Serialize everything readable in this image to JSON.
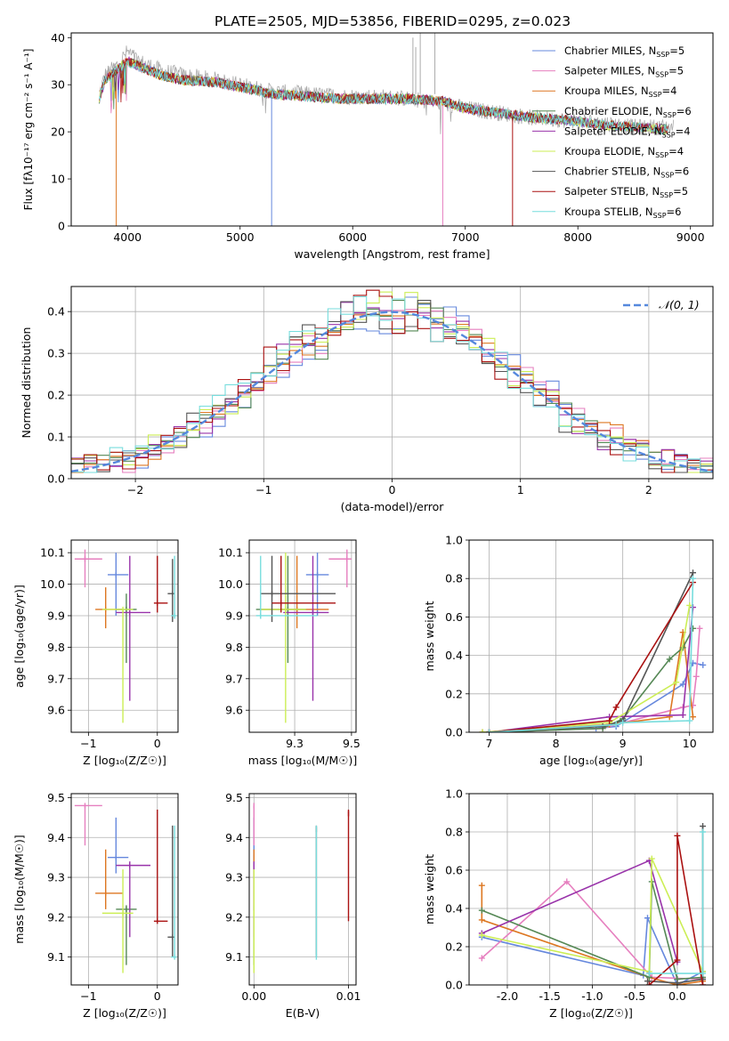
{
  "title": "PLATE=2505, MJD=53856, FIBERID=0295, z=0.023",
  "colors": [
    "#6688dd",
    "#e67fbf",
    "#dd7722",
    "#558855",
    "#9933aa",
    "#ccee55",
    "#555555",
    "#aa1111",
    "#77dddd"
  ],
  "chart_data": [
    {
      "id": "spectrum",
      "type": "line",
      "xlabel": "wavelength [Angstrom, rest frame]",
      "ylabel": "Flux [fλ10⁻¹⁷ erg cm⁻² s⁻¹ A⁻¹]",
      "xlim": [
        3500,
        9200
      ],
      "ylim": [
        0,
        41
      ],
      "xticks": [
        4000,
        5000,
        6000,
        7000,
        8000,
        9000
      ],
      "yticks": [
        0,
        10,
        20,
        30,
        40
      ],
      "legend_position": "top-right",
      "legend": [
        {
          "label": "Chabrier MILES, N",
          "sub": "SSP",
          "suffix": "=5"
        },
        {
          "label": "Salpeter MILES, N",
          "sub": "SSP",
          "suffix": "=5"
        },
        {
          "label": "Kroupa MILES, N",
          "sub": "SSP",
          "suffix": "=4"
        },
        {
          "label": "Chabrier ELODIE, N",
          "sub": "SSP",
          "suffix": "=6"
        },
        {
          "label": "Salpeter ELODIE, N",
          "sub": "SSP",
          "suffix": "=4"
        },
        {
          "label": "Kroupa ELODIE, N",
          "sub": "SSP",
          "suffix": "=4"
        },
        {
          "label": "Chabrier STELIB, N",
          "sub": "SSP",
          "suffix": "=6"
        },
        {
          "label": "Salpeter STELIB, N",
          "sub": "SSP",
          "suffix": "=5"
        },
        {
          "label": "Kroupa STELIB, N",
          "sub": "SSP",
          "suffix": "=6"
        }
      ],
      "data_series": {
        "name": "data",
        "color": "#aaaaaa",
        "x": [
          3750,
          3800,
          3900,
          4000,
          4100,
          4300,
          4500,
          4800,
          5000,
          5300,
          5600,
          5900,
          6200,
          6500,
          6800,
          7000,
          7300,
          7600,
          7900,
          8200,
          8500,
          8800
        ],
        "y": [
          28,
          32,
          34,
          37,
          35,
          33,
          32,
          31,
          30,
          28.5,
          28,
          27.5,
          27.5,
          27,
          26,
          25,
          24,
          23,
          22.5,
          22,
          21,
          21
        ]
      },
      "model_envelope": {
        "x": [
          3750,
          3800,
          3900,
          4000,
          4100,
          4300,
          4500,
          4800,
          5000,
          5300,
          5600,
          5900,
          6200,
          6500,
          6800,
          7000,
          7300,
          7600,
          7900,
          8200,
          8500,
          8800
        ],
        "y": [
          27,
          31,
          33,
          35,
          34,
          32,
          31,
          30.5,
          29.5,
          28,
          27.5,
          27,
          27,
          27,
          26.5,
          25,
          24,
          23,
          22.5,
          21.5,
          21,
          20.5
        ]
      },
      "model_end_x": [
        8000,
        7400,
        7400,
        8800,
        8800,
        8800,
        8800,
        8800,
        8800
      ]
    },
    {
      "id": "residuals",
      "type": "step",
      "xlabel": "(data-model)/error",
      "ylabel": "Normed distribution",
      "xlim": [
        -2.5,
        2.5
      ],
      "ylim": [
        0,
        0.46
      ],
      "xticks": [
        -2,
        -1,
        0,
        1,
        2
      ],
      "yticks": [
        0.0,
        0.1,
        0.2,
        0.3,
        0.4
      ],
      "grid": true,
      "legend_position": "top-right",
      "legend": [
        {
          "label": "𝒩(0, 1)",
          "style": "dashed"
        }
      ],
      "reference_curve": {
        "name": "𝒩(0, 1)",
        "mean": 0,
        "sigma": 1,
        "color": "#5588dd"
      },
      "bin_width": 0.1
    },
    {
      "id": "age-vs-metallicity",
      "type": "scatter",
      "xlabel": "Z [log₁₀(Z/Z☉)]",
      "ylabel": "age  [log₁₀(age/yr)]",
      "xlim": [
        -1.25,
        0.3
      ],
      "ylim": [
        9.53,
        10.14
      ],
      "xticks": [
        -1,
        0
      ],
      "yticks": [
        9.6,
        9.7,
        9.8,
        9.9,
        10.0,
        10.1
      ],
      "grid": true,
      "points": [
        {
          "x": -0.6,
          "y": 10.03,
          "xlo": -0.72,
          "xhi": -0.42,
          "ylo": 9.9,
          "yhi": 10.1
        },
        {
          "x": -1.05,
          "y": 10.08,
          "xlo": -1.2,
          "xhi": -0.8,
          "ylo": 9.99,
          "yhi": 10.11
        },
        {
          "x": -0.75,
          "y": 9.92,
          "xlo": -0.9,
          "xhi": -0.5,
          "ylo": 9.86,
          "yhi": 9.99
        },
        {
          "x": -0.45,
          "y": 9.92,
          "xlo": -0.6,
          "xhi": -0.3,
          "ylo": 9.75,
          "yhi": 9.97
        },
        {
          "x": -0.4,
          "y": 9.91,
          "xlo": -0.6,
          "xhi": -0.1,
          "ylo": 9.63,
          "yhi": 10.09
        },
        {
          "x": -0.5,
          "y": 9.92,
          "xlo": -0.8,
          "xhi": -0.35,
          "ylo": 9.56,
          "yhi": 9.92
        },
        {
          "x": 0.22,
          "y": 9.97,
          "xlo": 0.15,
          "xhi": 0.25,
          "ylo": 9.88,
          "yhi": 10.08
        },
        {
          "x": 0.0,
          "y": 9.94,
          "xlo": -0.05,
          "xhi": 0.15,
          "ylo": 9.91,
          "yhi": 10.09
        },
        {
          "x": 0.25,
          "y": 9.9,
          "xlo": 0.2,
          "xhi": 0.28,
          "ylo": 9.89,
          "yhi": 10.09
        }
      ]
    },
    {
      "id": "age-vs-mass",
      "type": "scatter",
      "xlabel": "mass [log₁₀(M/M☉)]",
      "ylabel": "",
      "xlim": [
        9.05,
        9.52
      ],
      "ylim": [
        9.53,
        10.14
      ],
      "xticks": [
        9.25,
        9.5
      ],
      "yticks": [
        9.6,
        9.7,
        9.8,
        9.9,
        10.0,
        10.1
      ],
      "grid": true,
      "points": [
        {
          "x": 9.35,
          "y": 10.03,
          "xlo": 9.3,
          "xhi": 9.4,
          "ylo": 9.9,
          "yhi": 10.1
        },
        {
          "x": 9.48,
          "y": 10.08,
          "xlo": 9.4,
          "xhi": 9.5,
          "ylo": 9.99,
          "yhi": 10.11
        },
        {
          "x": 9.26,
          "y": 9.92,
          "xlo": 9.1,
          "xhi": 9.4,
          "ylo": 9.86,
          "yhi": 10.09
        },
        {
          "x": 9.22,
          "y": 9.92,
          "xlo": 9.08,
          "xhi": 9.3,
          "ylo": 9.75,
          "yhi": 10.09
        },
        {
          "x": 9.33,
          "y": 9.91,
          "xlo": 9.2,
          "xhi": 9.4,
          "ylo": 9.63,
          "yhi": 10.09
        },
        {
          "x": 9.21,
          "y": 9.92,
          "xlo": 9.1,
          "xhi": 9.3,
          "ylo": 9.56,
          "yhi": 10.1
        },
        {
          "x": 9.15,
          "y": 9.97,
          "xlo": 9.1,
          "xhi": 9.43,
          "ylo": 9.88,
          "yhi": 10.09
        },
        {
          "x": 9.19,
          "y": 9.94,
          "xlo": 9.15,
          "xhi": 9.43,
          "ylo": 9.91,
          "yhi": 10.09
        },
        {
          "x": 9.1,
          "y": 9.9,
          "xlo": 9.08,
          "xhi": 9.35,
          "ylo": 9.89,
          "yhi": 10.09
        }
      ]
    },
    {
      "id": "mass-weight-vs-age",
      "type": "line",
      "xlabel": "age  [log₁₀(age/yr)]",
      "ylabel": "mass weight",
      "xlim": [
        6.7,
        10.35
      ],
      "ylim": [
        0,
        1.0
      ],
      "xticks": [
        7,
        8,
        9,
        10
      ],
      "yticks": [
        0.0,
        0.2,
        0.4,
        0.6,
        0.8,
        1.0
      ],
      "grid": true,
      "series": [
        {
          "x": [
            7.0,
            8.6,
            8.9,
            9.9,
            10.05,
            10.2
          ],
          "y": [
            0.0,
            0.02,
            0.03,
            0.25,
            0.36,
            0.35
          ]
        },
        {
          "x": [
            7.0,
            8.7,
            8.9,
            9.9,
            10.05,
            10.1,
            10.15
          ],
          "y": [
            0.0,
            0.02,
            0.04,
            0.13,
            0.14,
            0.29,
            0.54
          ]
        },
        {
          "x": [
            6.9,
            8.8,
            9.7,
            9.9,
            10.05
          ],
          "y": [
            0.0,
            0.04,
            0.08,
            0.52,
            0.08
          ]
        },
        {
          "x": [
            7.0,
            8.7,
            9.0,
            9.7,
            9.9,
            10.05
          ],
          "y": [
            0.0,
            0.02,
            0.07,
            0.38,
            0.44,
            0.54
          ]
        },
        {
          "x": [
            7.0,
            8.8,
            9.9,
            10.05
          ],
          "y": [
            0.0,
            0.08,
            0.09,
            0.65
          ]
        },
        {
          "x": [
            6.9,
            8.8,
            9.8,
            10.0
          ],
          "y": [
            0.0,
            0.05,
            0.26,
            0.66
          ]
        },
        {
          "x": [
            7.0,
            8.7,
            9.0,
            10.05
          ],
          "y": [
            0.0,
            0.03,
            0.06,
            0.83
          ]
        },
        {
          "x": [
            7.0,
            8.8,
            8.9,
            10.05
          ],
          "y": [
            0.0,
            0.06,
            0.13,
            0.78
          ]
        },
        {
          "x": [
            7.0,
            8.9,
            9.0,
            10.0,
            10.05
          ],
          "y": [
            0.0,
            0.04,
            0.05,
            0.06,
            0.8
          ]
        }
      ]
    },
    {
      "id": "mass-vs-metallicity",
      "type": "scatter",
      "xlabel": "Z [log₁₀(Z/Z☉)]",
      "ylabel": "mass [log₁₀(M/M☉)]",
      "xlim": [
        -1.25,
        0.3
      ],
      "ylim": [
        9.03,
        9.51
      ],
      "xticks": [
        -1,
        0
      ],
      "yticks": [
        9.1,
        9.2,
        9.3,
        9.4,
        9.5
      ],
      "grid": true,
      "points": [
        {
          "x": -0.6,
          "y": 9.35,
          "xlo": -0.72,
          "xhi": -0.42,
          "ylo": 9.31,
          "yhi": 9.45
        },
        {
          "x": -1.05,
          "y": 9.48,
          "xlo": -1.2,
          "xhi": -0.8,
          "ylo": 9.38,
          "yhi": 9.48
        },
        {
          "x": -0.75,
          "y": 9.26,
          "xlo": -0.9,
          "xhi": -0.5,
          "ylo": 9.22,
          "yhi": 9.37
        },
        {
          "x": -0.45,
          "y": 9.22,
          "xlo": -0.6,
          "xhi": -0.3,
          "ylo": 9.08,
          "yhi": 9.23
        },
        {
          "x": -0.4,
          "y": 9.33,
          "xlo": -0.6,
          "xhi": -0.1,
          "ylo": 9.15,
          "yhi": 9.34
        },
        {
          "x": -0.5,
          "y": 9.21,
          "xlo": -0.8,
          "xhi": -0.35,
          "ylo": 9.06,
          "yhi": 9.32
        },
        {
          "x": 0.22,
          "y": 9.15,
          "xlo": 0.15,
          "xhi": 0.25,
          "ylo": 9.1,
          "yhi": 9.43
        },
        {
          "x": 0.0,
          "y": 9.19,
          "xlo": -0.05,
          "xhi": 0.15,
          "ylo": 9.19,
          "yhi": 9.47
        },
        {
          "x": 0.25,
          "y": 9.1,
          "xlo": 0.2,
          "xhi": 0.28,
          "ylo": 9.1,
          "yhi": 9.43
        }
      ]
    },
    {
      "id": "mass-vs-ebv",
      "type": "scatter",
      "xlabel": "E(B-V)",
      "ylabel": "",
      "xlim": [
        -0.0005,
        0.0108
      ],
      "ylim": [
        9.03,
        9.51
      ],
      "xticks": [
        0.0,
        0.01
      ],
      "yticks": [
        9.1,
        9.2,
        9.3,
        9.4,
        9.5
      ],
      "grid": true,
      "points": [
        {
          "x": 0.0,
          "y": 9.35,
          "ylo": 9.31,
          "yhi": 9.45
        },
        {
          "x": 0.0,
          "y": 9.48,
          "ylo": 9.38,
          "yhi": 9.48
        },
        {
          "x": 0.0,
          "y": 9.26,
          "ylo": 9.22,
          "yhi": 9.37
        },
        {
          "x": 0.0,
          "y": 9.22,
          "ylo": 9.08,
          "yhi": 9.23
        },
        {
          "x": 0.0,
          "y": 9.33,
          "ylo": 9.15,
          "yhi": 9.34
        },
        {
          "x": 0.0,
          "y": 9.21,
          "ylo": 9.06,
          "yhi": 9.32
        },
        {
          "x": 0.0066,
          "y": 9.42,
          "ylo": 9.1,
          "yhi": 9.43
        },
        {
          "x": 0.01,
          "y": 9.46,
          "ylo": 9.19,
          "yhi": 9.47
        },
        {
          "x": 0.0066,
          "y": 9.1,
          "ylo": 9.1,
          "yhi": 9.43
        }
      ]
    },
    {
      "id": "mass-weight-vs-metallicity",
      "type": "line",
      "xlabel": "Z [log₁₀(Z/Z☉)]",
      "ylabel": "mass weight",
      "xlim": [
        -2.45,
        0.42
      ],
      "ylim": [
        0,
        1.0
      ],
      "xticks": [
        -2.0,
        -1.5,
        -1.0,
        -0.5,
        0.0
      ],
      "yticks": [
        0.0,
        0.2,
        0.4,
        0.6,
        0.8,
        1.0
      ],
      "grid": true,
      "series": [
        {
          "x": [
            -2.3,
            -0.4,
            -0.35,
            0.0,
            0.3
          ],
          "y": [
            0.25,
            0.05,
            0.35,
            0.0,
            0.07
          ]
        },
        {
          "x": [
            -2.3,
            -1.3,
            -0.3,
            0.3
          ],
          "y": [
            0.14,
            0.54,
            0.04,
            0.03
          ]
        },
        {
          "x": [
            -2.3,
            -2.3,
            -0.33,
            0.0,
            0.3
          ],
          "y": [
            0.52,
            0.34,
            0.04,
            0.0,
            0.02
          ]
        },
        {
          "x": [
            -2.3,
            -0.33,
            -0.3,
            0.0,
            0.3
          ],
          "y": [
            0.39,
            0.04,
            0.54,
            0.03,
            0.04
          ]
        },
        {
          "x": [
            -2.3,
            -0.33,
            0.0
          ],
          "y": [
            0.27,
            0.65,
            0.12
          ]
        },
        {
          "x": [
            -2.3,
            -0.33,
            -0.3,
            0.3
          ],
          "y": [
            0.26,
            0.07,
            0.66,
            0.07
          ]
        },
        {
          "x": [
            -0.35,
            0.0,
            0.3,
            0.3
          ],
          "y": [
            0.02,
            0.01,
            0.03,
            0.83
          ]
        },
        {
          "x": [
            -0.33,
            0.0,
            0.0,
            0.3
          ],
          "y": [
            0.0,
            0.13,
            0.78,
            0.0
          ]
        },
        {
          "x": [
            -0.33,
            0.3,
            0.3
          ],
          "y": [
            0.06,
            0.06,
            0.8
          ]
        }
      ]
    }
  ]
}
